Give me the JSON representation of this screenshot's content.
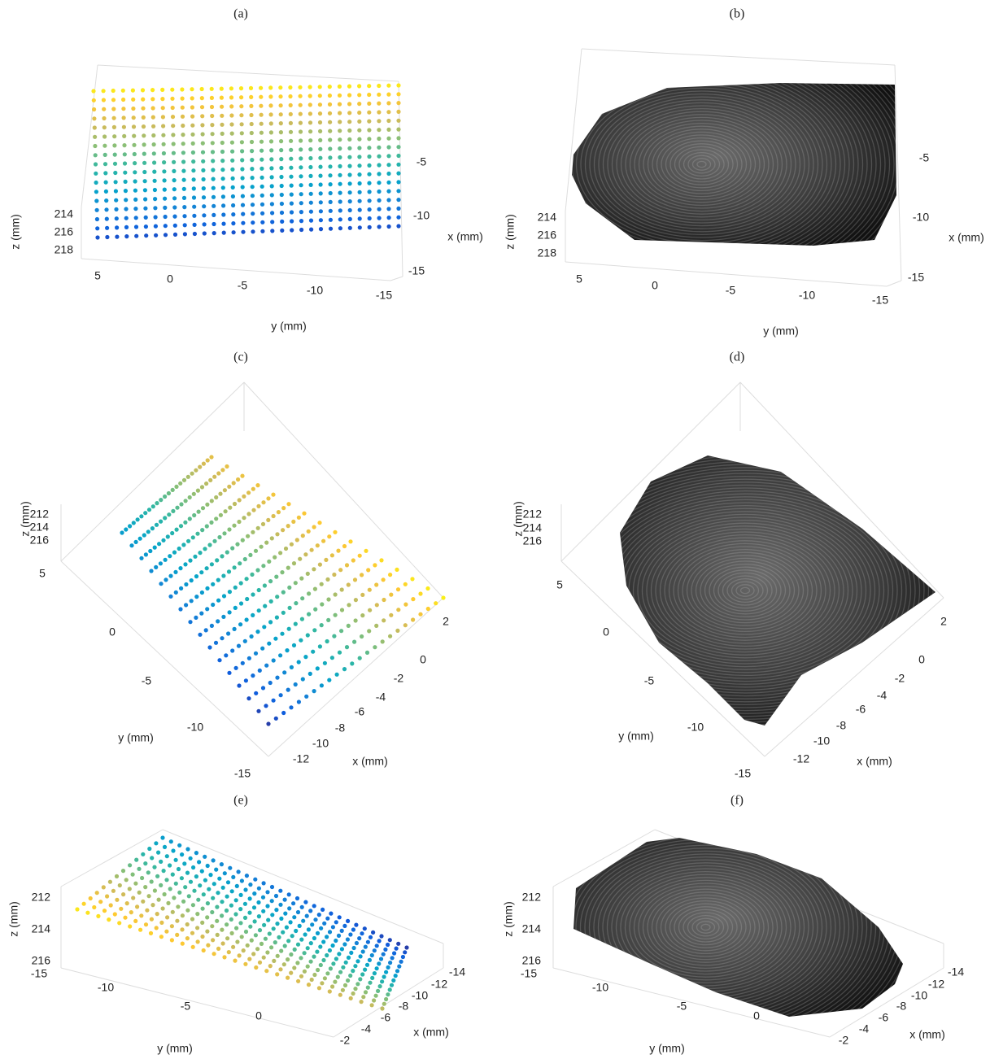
{
  "panels": [
    {
      "label": "(a)",
      "axes": {
        "z": {
          "title": "z (mm)",
          "ticks": [
            "214",
            "216",
            "218"
          ]
        },
        "y": {
          "title": "y (mm)",
          "ticks": [
            "5",
            "0",
            "-5",
            "-10",
            "-15"
          ]
        },
        "x": {
          "title": "x (mm)",
          "ticks": [
            "-5",
            "-10",
            "-15"
          ]
        }
      }
    },
    {
      "label": "(b)",
      "axes": {
        "z": {
          "title": "z (mm)",
          "ticks": [
            "214",
            "216",
            "218"
          ]
        },
        "y": {
          "title": "y (mm)",
          "ticks": [
            "5",
            "0",
            "-5",
            "-10",
            "-15"
          ]
        },
        "x": {
          "title": "x (mm)",
          "ticks": [
            "-5",
            "-10",
            "-15"
          ]
        }
      }
    },
    {
      "label": "(c)",
      "axes": {
        "z": {
          "title": "z (mm)",
          "ticks": [
            "212",
            "214",
            "216"
          ]
        },
        "y": {
          "title": "y (mm)",
          "ticks": [
            "5",
            "0",
            "-5",
            "-10",
            "-15"
          ]
        },
        "x": {
          "title": "x (mm)",
          "ticks": [
            "2",
            "0",
            "-2",
            "-4",
            "-6",
            "-8",
            "-10",
            "-12"
          ]
        }
      }
    },
    {
      "label": "(d)",
      "axes": {
        "z": {
          "title": "z (mm)",
          "ticks": [
            "212",
            "214",
            "216"
          ]
        },
        "y": {
          "title": "y (mm)",
          "ticks": [
            "5",
            "0",
            "-5",
            "-10",
            "-15"
          ]
        },
        "x": {
          "title": "x (mm)",
          "ticks": [
            "2",
            "0",
            "-2",
            "-4",
            "-6",
            "-8",
            "-10",
            "-12"
          ]
        }
      }
    },
    {
      "label": "(e)",
      "axes": {
        "z": {
          "title": "z (mm)",
          "ticks": [
            "212",
            "214",
            "216"
          ]
        },
        "y": {
          "title": "y (mm)",
          "ticks": [
            "-15",
            "-10",
            "-5",
            "0"
          ]
        },
        "x": {
          "title": "x (mm)",
          "ticks": [
            "-14",
            "-12",
            "-10",
            "-8",
            "-6",
            "-4",
            "-2"
          ]
        }
      }
    },
    {
      "label": "(f)",
      "axes": {
        "z": {
          "title": "z (mm)",
          "ticks": [
            "212",
            "214",
            "216"
          ]
        },
        "y": {
          "title": "y (mm)",
          "ticks": [
            "-15",
            "-10",
            "-5",
            "0"
          ]
        },
        "x": {
          "title": "x (mm)",
          "ticks": [
            "-14",
            "-12",
            "-10",
            "-8",
            "-6",
            "-4",
            "-2"
          ]
        }
      }
    }
  ]
}
